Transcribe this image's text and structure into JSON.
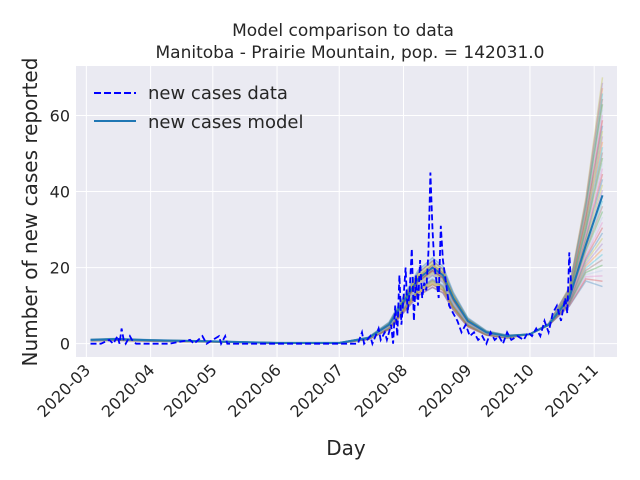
{
  "chart_data": {
    "type": "line",
    "title": "Model comparison to data",
    "subtitle": "Manitoba - Prairie Mountain, pop. = 142031.0",
    "xlabel": "Day",
    "ylabel": "Number of new cases reported",
    "x_range": [
      "2020-02-25",
      "2020-11-12"
    ],
    "ylim": [
      -3.5,
      73
    ],
    "y_ticks": [
      0,
      20,
      40,
      60
    ],
    "x_ticks": [
      "2020-03",
      "2020-04",
      "2020-05",
      "2020-06",
      "2020-07",
      "2020-08",
      "2020-09",
      "2020-10",
      "2020-11"
    ],
    "x_tick_dates": [
      "2020-03-01",
      "2020-04-01",
      "2020-05-01",
      "2020-06-01",
      "2020-07-01",
      "2020-08-01",
      "2020-09-01",
      "2020-10-01",
      "2020-11-01"
    ],
    "grid": true,
    "legend_position": "upper-left",
    "legend": [
      {
        "label": "new cases data",
        "style": "dashed",
        "color": "#0000ff"
      },
      {
        "label": "new cases model",
        "style": "solid",
        "color": "#1f77b4"
      }
    ],
    "series_data": {
      "style": "dashed",
      "color": "#0000ff",
      "points": [
        [
          "2020-03-03",
          0
        ],
        [
          "2020-03-08",
          0
        ],
        [
          "2020-03-12",
          1
        ],
        [
          "2020-03-14",
          0
        ],
        [
          "2020-03-16",
          2
        ],
        [
          "2020-03-17",
          0
        ],
        [
          "2020-03-18",
          4
        ],
        [
          "2020-03-19",
          1
        ],
        [
          "2020-03-20",
          0
        ],
        [
          "2020-03-22",
          2
        ],
        [
          "2020-03-23",
          1
        ],
        [
          "2020-03-25",
          0
        ],
        [
          "2020-04-01",
          0
        ],
        [
          "2020-04-10",
          0
        ],
        [
          "2020-04-20",
          1
        ],
        [
          "2020-04-22",
          0
        ],
        [
          "2020-04-26",
          2
        ],
        [
          "2020-04-28",
          0
        ],
        [
          "2020-05-04",
          2
        ],
        [
          "2020-05-05",
          0
        ],
        [
          "2020-05-07",
          2
        ],
        [
          "2020-05-08",
          0
        ],
        [
          "2020-06-01",
          0
        ],
        [
          "2020-07-01",
          0
        ],
        [
          "2020-07-10",
          0
        ],
        [
          "2020-07-12",
          3
        ],
        [
          "2020-07-13",
          0
        ],
        [
          "2020-07-16",
          2
        ],
        [
          "2020-07-17",
          0
        ],
        [
          "2020-07-20",
          4
        ],
        [
          "2020-07-21",
          1
        ],
        [
          "2020-07-23",
          3
        ],
        [
          "2020-07-24",
          1
        ],
        [
          "2020-07-26",
          5
        ],
        [
          "2020-07-27",
          0
        ],
        [
          "2020-07-28",
          10
        ],
        [
          "2020-07-29",
          2
        ],
        [
          "2020-07-30",
          18
        ],
        [
          "2020-07-31",
          5
        ],
        [
          "2020-08-01",
          12
        ],
        [
          "2020-08-02",
          20
        ],
        [
          "2020-08-03",
          8
        ],
        [
          "2020-08-04",
          14
        ],
        [
          "2020-08-05",
          25
        ],
        [
          "2020-08-06",
          6
        ],
        [
          "2020-08-07",
          18
        ],
        [
          "2020-08-08",
          10
        ],
        [
          "2020-08-09",
          22
        ],
        [
          "2020-08-10",
          12
        ],
        [
          "2020-08-11",
          16
        ],
        [
          "2020-08-12",
          14
        ],
        [
          "2020-08-13",
          24
        ],
        [
          "2020-08-14",
          45
        ],
        [
          "2020-08-15",
          30
        ],
        [
          "2020-08-16",
          20
        ],
        [
          "2020-08-17",
          16
        ],
        [
          "2020-08-18",
          12
        ],
        [
          "2020-08-19",
          31
        ],
        [
          "2020-08-20",
          22
        ],
        [
          "2020-08-21",
          18
        ],
        [
          "2020-08-22",
          14
        ],
        [
          "2020-08-23",
          10
        ],
        [
          "2020-08-25",
          8
        ],
        [
          "2020-08-27",
          6
        ],
        [
          "2020-08-29",
          3
        ],
        [
          "2020-08-31",
          5
        ],
        [
          "2020-09-02",
          2
        ],
        [
          "2020-09-04",
          3
        ],
        [
          "2020-09-06",
          1
        ],
        [
          "2020-09-08",
          2
        ],
        [
          "2020-09-10",
          0
        ],
        [
          "2020-09-12",
          3
        ],
        [
          "2020-09-14",
          1
        ],
        [
          "2020-09-16",
          2
        ],
        [
          "2020-09-18",
          0
        ],
        [
          "2020-09-20",
          3
        ],
        [
          "2020-09-22",
          1
        ],
        [
          "2020-09-25",
          2
        ],
        [
          "2020-09-28",
          1
        ],
        [
          "2020-09-30",
          3
        ],
        [
          "2020-10-02",
          2
        ],
        [
          "2020-10-04",
          4
        ],
        [
          "2020-10-06",
          2
        ],
        [
          "2020-10-08",
          6
        ],
        [
          "2020-10-10",
          3
        ],
        [
          "2020-10-12",
          8
        ],
        [
          "2020-10-14",
          10
        ],
        [
          "2020-10-16",
          6
        ],
        [
          "2020-10-18",
          12
        ],
        [
          "2020-10-19",
          8
        ],
        [
          "2020-10-20",
          24
        ],
        [
          "2020-10-21",
          14
        ]
      ]
    },
    "series_model": {
      "style": "solid",
      "color": "#1f77b4",
      "points": [
        [
          "2020-03-03",
          1.0
        ],
        [
          "2020-03-15",
          1.2
        ],
        [
          "2020-04-01",
          0.9
        ],
        [
          "2020-05-01",
          0.6
        ],
        [
          "2020-06-01",
          0.2
        ],
        [
          "2020-07-01",
          0.2
        ],
        [
          "2020-07-15",
          1.5
        ],
        [
          "2020-07-25",
          5
        ],
        [
          "2020-08-01",
          11
        ],
        [
          "2020-08-08",
          17
        ],
        [
          "2020-08-15",
          20
        ],
        [
          "2020-08-20",
          18
        ],
        [
          "2020-08-25",
          12
        ],
        [
          "2020-09-01",
          6
        ],
        [
          "2020-09-10",
          3
        ],
        [
          "2020-09-20",
          2
        ],
        [
          "2020-10-01",
          2.5
        ],
        [
          "2020-10-10",
          5
        ],
        [
          "2020-10-20",
          12
        ],
        [
          "2020-10-28",
          26
        ],
        [
          "2020-11-05",
          39
        ]
      ]
    },
    "ensemble": {
      "count": 40,
      "colors": [
        "#1f77b4",
        "#ff7f0e",
        "#2ca02c",
        "#d62728",
        "#9467bd",
        "#8c564b",
        "#e377c2",
        "#bcbd22",
        "#17becf",
        "#aec7e8"
      ],
      "final_values_range": [
        15,
        70
      ]
    }
  }
}
